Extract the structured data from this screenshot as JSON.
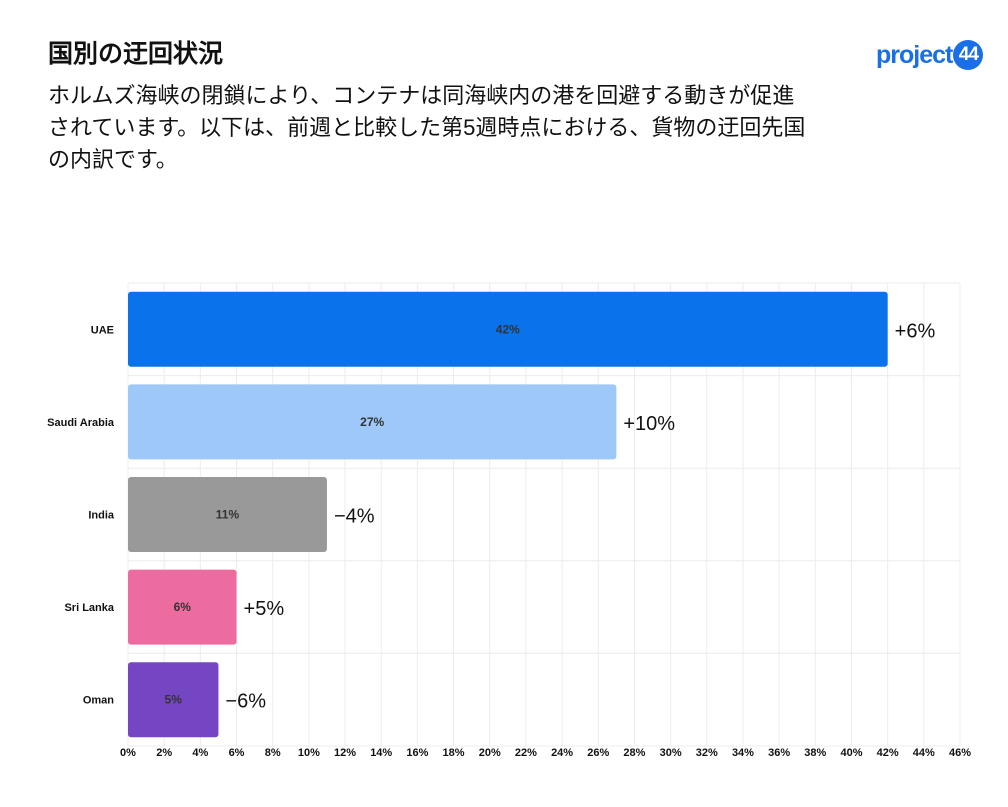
{
  "header": {
    "title": "国別の迂回状況",
    "description": "ホルムズ海峡の閉鎖により、コンテナは同海峡内の港を回避する動きが促進されています。以下は、前週と比較した第5週時点における、貨物の迂回先国の内訳です。",
    "logo_text": "project",
    "logo_badge": "44"
  },
  "chart_data": {
    "type": "bar",
    "orientation": "horizontal",
    "categories": [
      "UAE",
      "Saudi Arabia",
      "India",
      "Sri Lanka",
      "Oman"
    ],
    "values": [
      42,
      27,
      11,
      6,
      5
    ],
    "value_labels": [
      "42%",
      "27%",
      "11%",
      "6%",
      "5%"
    ],
    "change_labels": [
      "+6%",
      "+10%",
      "−4%",
      "+5%",
      "−6%"
    ],
    "colors": [
      "#0a72ea",
      "#9dc8f7",
      "#999999",
      "#ec6ca0",
      "#7446c4"
    ],
    "xlim": [
      0,
      46
    ],
    "xticks": [
      "0%",
      "2%",
      "4%",
      "6%",
      "8%",
      "10%",
      "12%",
      "14%",
      "16%",
      "18%",
      "20%",
      "22%",
      "24%",
      "26%",
      "28%",
      "30%",
      "32%",
      "34%",
      "36%",
      "38%",
      "40%",
      "42%",
      "44%",
      "46%"
    ],
    "grid": true
  }
}
